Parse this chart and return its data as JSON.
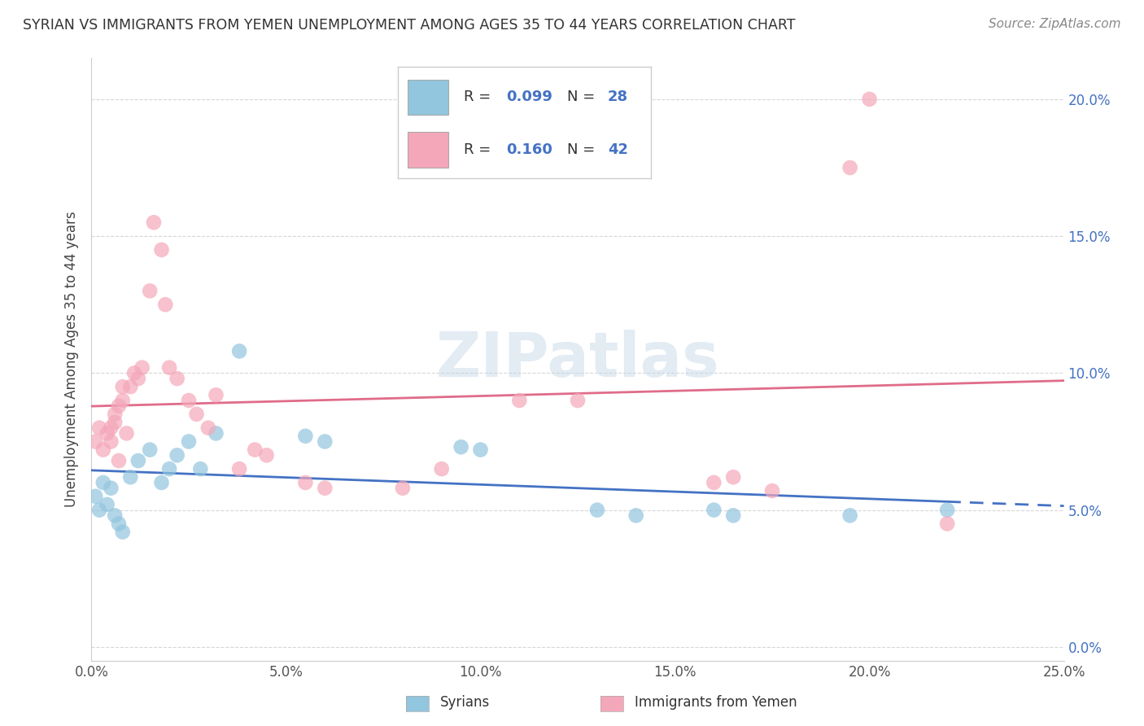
{
  "title": "SYRIAN VS IMMIGRANTS FROM YEMEN UNEMPLOYMENT AMONG AGES 35 TO 44 YEARS CORRELATION CHART",
  "source": "Source: ZipAtlas.com",
  "ylabel": "Unemployment Among Ages 35 to 44 years",
  "xlabel_syrians": "Syrians",
  "xlabel_yemen": "Immigrants from Yemen",
  "xlim": [
    0.0,
    0.25
  ],
  "ylim": [
    -0.005,
    0.215
  ],
  "color_syrian": "#92C5DE",
  "color_yemen": "#F4A7B9",
  "color_trendline_syrian": "#4472C4",
  "color_trendline_yemen": "#E06C8A",
  "watermark": "ZIPatlas",
  "legend_R_syrian": "0.099",
  "legend_N_syrian": "28",
  "legend_R_yemen": "0.160",
  "legend_N_yemen": "42",
  "syrians_x": [
    0.001,
    0.002,
    0.003,
    0.004,
    0.005,
    0.006,
    0.007,
    0.008,
    0.01,
    0.012,
    0.015,
    0.018,
    0.02,
    0.022,
    0.025,
    0.028,
    0.032,
    0.038,
    0.055,
    0.06,
    0.095,
    0.1,
    0.13,
    0.14,
    0.16,
    0.165,
    0.195,
    0.22
  ],
  "syrians_y": [
    0.055,
    0.05,
    0.06,
    0.052,
    0.058,
    0.048,
    0.045,
    0.042,
    0.062,
    0.068,
    0.072,
    0.06,
    0.065,
    0.07,
    0.075,
    0.065,
    0.078,
    0.108,
    0.077,
    0.075,
    0.073,
    0.072,
    0.05,
    0.048,
    0.05,
    0.048,
    0.048,
    0.05
  ],
  "yemen_x": [
    0.001,
    0.002,
    0.003,
    0.004,
    0.005,
    0.006,
    0.007,
    0.008,
    0.009,
    0.01,
    0.011,
    0.012,
    0.013,
    0.015,
    0.016,
    0.018,
    0.019,
    0.02,
    0.022,
    0.025,
    0.027,
    0.03,
    0.032,
    0.038,
    0.042,
    0.045,
    0.055,
    0.06,
    0.08,
    0.09,
    0.11,
    0.125,
    0.16,
    0.165,
    0.175,
    0.195,
    0.2,
    0.22,
    0.005,
    0.006,
    0.007,
    0.008
  ],
  "yemen_y": [
    0.075,
    0.08,
    0.072,
    0.078,
    0.08,
    0.085,
    0.088,
    0.09,
    0.078,
    0.095,
    0.1,
    0.098,
    0.102,
    0.13,
    0.155,
    0.145,
    0.125,
    0.102,
    0.098,
    0.09,
    0.085,
    0.08,
    0.092,
    0.065,
    0.072,
    0.07,
    0.06,
    0.058,
    0.058,
    0.065,
    0.09,
    0.09,
    0.06,
    0.062,
    0.057,
    0.175,
    0.2,
    0.045,
    0.075,
    0.082,
    0.068,
    0.095
  ]
}
